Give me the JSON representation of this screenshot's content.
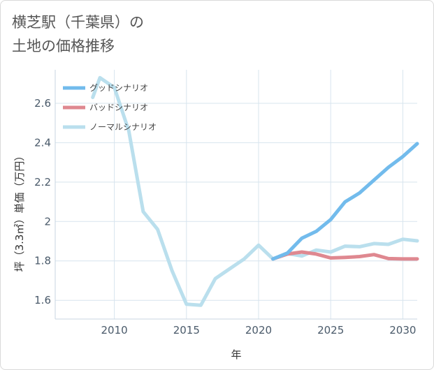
{
  "title": {
    "line1": "横芝駅（千葉県）の",
    "line2": "土地の価格推移"
  },
  "colors": {
    "good": "#72bbec",
    "bad": "#df8890",
    "normal": "#badfed",
    "grid": "#d7e4ee"
  },
  "chart_data": {
    "type": "line",
    "xlabel": "年",
    "ylabel": "坪（3.3㎡）単価（万円）",
    "xlim": [
      2005.9,
      2031
    ],
    "ylim": [
      1.505,
      2.77
    ],
    "x_ticks": [
      2010,
      2015,
      2020,
      2025,
      2030
    ],
    "y_ticks": [
      1.6,
      1.8,
      2,
      2.2,
      2.4,
      2.6
    ],
    "y_tick_labels": [
      "1.6",
      "1.8",
      "2",
      "2.2",
      "2.4",
      "2.6"
    ],
    "grid": true,
    "legend_position": "top-left",
    "series": [
      {
        "name": "グッドシナリオ",
        "color": "#72bbec",
        "x": [
          2021,
          2022,
          2023,
          2024,
          2025,
          2026,
          2027,
          2028,
          2029,
          2030,
          2031
        ],
        "y": [
          1.81,
          1.84,
          1.915,
          1.95,
          2.01,
          2.1,
          2.145,
          2.21,
          2.275,
          2.33,
          2.395
        ]
      },
      {
        "name": "バッドシナリオ",
        "color": "#df8890",
        "x": [
          2021,
          2022,
          2023,
          2024,
          2025,
          2026,
          2027,
          2028,
          2029,
          2030,
          2031
        ],
        "y": [
          1.81,
          1.835,
          1.845,
          1.835,
          1.815,
          1.818,
          1.822,
          1.832,
          1.812,
          1.81,
          1.81
        ]
      },
      {
        "name": "ノーマルシナリオ",
        "color": "#badfed",
        "x": [
          2008.5,
          2009,
          2010,
          2011,
          2012,
          2013,
          2014,
          2015,
          2016,
          2017,
          2018,
          2019,
          2020,
          2021,
          2022,
          2023,
          2024,
          2025,
          2026,
          2027,
          2028,
          2029,
          2030,
          2031
        ],
        "y": [
          2.63,
          2.73,
          2.68,
          2.46,
          2.05,
          1.96,
          1.75,
          1.58,
          1.575,
          1.71,
          1.76,
          1.81,
          1.88,
          1.81,
          1.838,
          1.825,
          1.855,
          1.845,
          1.875,
          1.872,
          1.888,
          1.884,
          1.91,
          1.902
        ]
      }
    ]
  }
}
